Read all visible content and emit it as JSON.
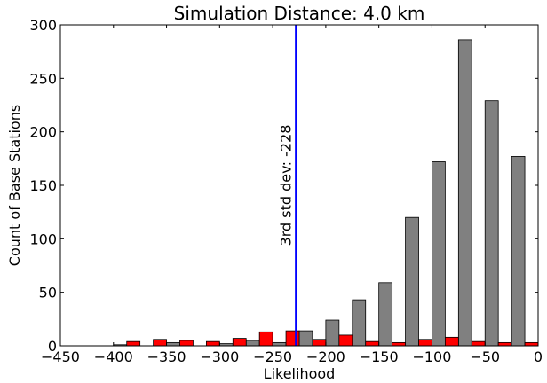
{
  "chart_data": {
    "type": "bar",
    "title": "Simulation Distance: 4.0 km",
    "xlabel": "Likelihood",
    "ylabel": "Count of Base Stations",
    "xlim": [
      -450,
      0
    ],
    "ylim": [
      0,
      300
    ],
    "xticks": [
      "−450",
      "−400",
      "−350",
      "−300",
      "−250",
      "−200",
      "−150",
      "−100",
      "−50",
      "0"
    ],
    "yticks": [
      "0",
      "50",
      "100",
      "150",
      "200",
      "250",
      "300"
    ],
    "bin_width": 25,
    "series": [
      {
        "color": "#808080",
        "bins": [
          {
            "x": -400,
            "value": 1
          },
          {
            "x": -350,
            "value": 3
          },
          {
            "x": -300,
            "value": 2
          },
          {
            "x": -275,
            "value": 5
          },
          {
            "x": -250,
            "value": 3
          },
          {
            "x": -225,
            "value": 14
          },
          {
            "x": -200,
            "value": 24
          },
          {
            "x": -175,
            "value": 43
          },
          {
            "x": -150,
            "value": 59
          },
          {
            "x": -125,
            "value": 120
          },
          {
            "x": -100,
            "value": 172
          },
          {
            "x": -75,
            "value": 286
          },
          {
            "x": -50,
            "value": 229
          },
          {
            "x": -25,
            "value": 177
          }
        ]
      },
      {
        "color": "#ff0000",
        "bins": [
          {
            "x": -400,
            "value": 4
          },
          {
            "x": -375,
            "value": 6
          },
          {
            "x": -350,
            "value": 5
          },
          {
            "x": -325,
            "value": 4
          },
          {
            "x": -300,
            "value": 7
          },
          {
            "x": -275,
            "value": 13
          },
          {
            "x": -250,
            "value": 14
          },
          {
            "x": -225,
            "value": 6
          },
          {
            "x": -200,
            "value": 10
          },
          {
            "x": -175,
            "value": 4
          },
          {
            "x": -150,
            "value": 3
          },
          {
            "x": -125,
            "value": 6
          },
          {
            "x": -100,
            "value": 8
          },
          {
            "x": -75,
            "value": 4
          },
          {
            "x": -50,
            "value": 3
          },
          {
            "x": -25,
            "value": 3
          }
        ]
      }
    ],
    "vline": {
      "x": -228,
      "color": "#0000ff",
      "label": "3rd std dev: -228"
    },
    "grid": false,
    "legend": "none"
  }
}
